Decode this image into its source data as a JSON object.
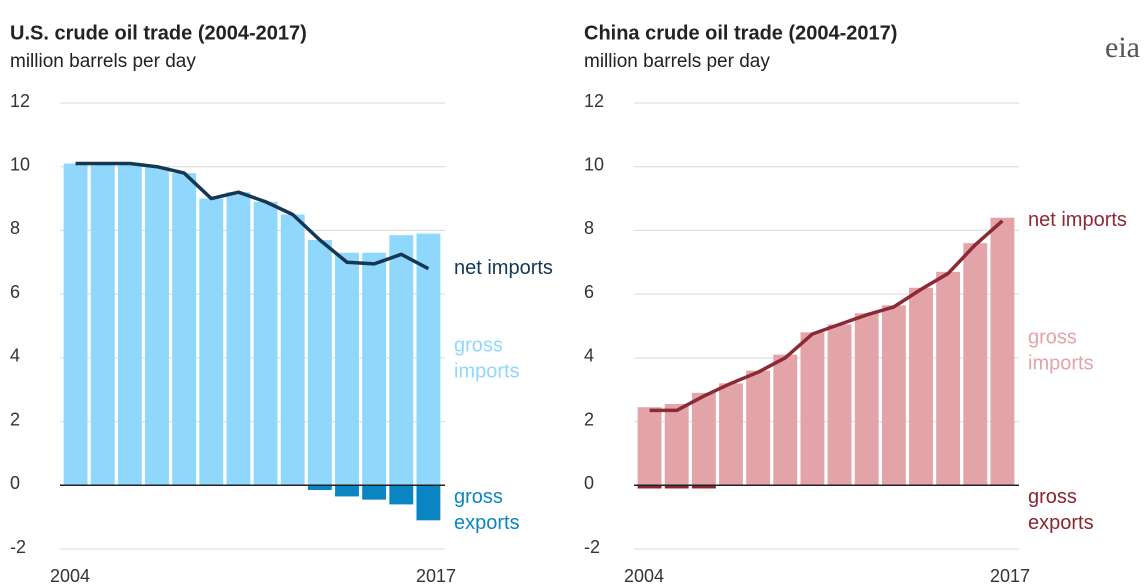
{
  "logo": "eia",
  "chart_data": [
    {
      "type": "bar",
      "title": "U.S. crude oil trade (2004-2017)",
      "subtitle": "million barrels per day",
      "categories": [
        "2004",
        null,
        null,
        null,
        null,
        null,
        null,
        null,
        null,
        null,
        null,
        null,
        null,
        "2017"
      ],
      "ylim": [
        -2,
        12
      ],
      "yticks": [
        -2,
        0,
        2,
        4,
        6,
        8,
        10,
        12
      ],
      "grid": true,
      "series": [
        {
          "name": "gross imports",
          "type": "bar",
          "color": "#8fd8fb",
          "values": [
            10.1,
            10.1,
            10.1,
            10.0,
            9.8,
            9.0,
            9.2,
            8.9,
            8.5,
            7.7,
            7.3,
            7.3,
            7.85,
            7.9
          ]
        },
        {
          "name": "gross exports",
          "type": "bar",
          "color": "#0a85c4",
          "values": [
            0,
            0,
            0,
            0,
            0,
            0,
            0,
            0,
            0,
            -0.15,
            -0.35,
            -0.45,
            -0.6,
            -1.1
          ]
        },
        {
          "name": "net imports",
          "type": "line",
          "color": "#163752",
          "values": [
            10.1,
            10.1,
            10.1,
            10.0,
            9.8,
            9.0,
            9.2,
            8.9,
            8.5,
            7.7,
            7.0,
            6.95,
            7.25,
            6.8
          ]
        }
      ]
    },
    {
      "type": "bar",
      "title": "China crude oil trade (2004-2017)",
      "subtitle": "million barrels per day",
      "categories": [
        "2004",
        null,
        null,
        null,
        null,
        null,
        null,
        null,
        null,
        null,
        null,
        null,
        null,
        "2017"
      ],
      "ylim": [
        -2,
        12
      ],
      "yticks": [
        -2,
        0,
        2,
        4,
        6,
        8,
        10,
        12
      ],
      "grid": true,
      "series": [
        {
          "name": "gross imports",
          "type": "bar",
          "color": "#e2a3a9",
          "values": [
            2.45,
            2.55,
            2.9,
            3.2,
            3.6,
            4.1,
            4.8,
            5.05,
            5.4,
            5.65,
            6.2,
            6.7,
            7.6,
            8.4
          ]
        },
        {
          "name": "gross exports",
          "type": "bar",
          "color": "#8a2530",
          "values": [
            -0.1,
            -0.1,
            -0.1,
            0,
            0,
            0,
            0,
            0,
            0,
            0,
            0,
            0,
            0,
            0
          ]
        },
        {
          "name": "net imports",
          "type": "line",
          "color": "#8b2a35",
          "values": [
            2.35,
            2.35,
            2.8,
            3.2,
            3.55,
            4.0,
            4.75,
            5.05,
            5.35,
            5.6,
            6.15,
            6.65,
            7.55,
            8.3
          ]
        }
      ]
    }
  ]
}
